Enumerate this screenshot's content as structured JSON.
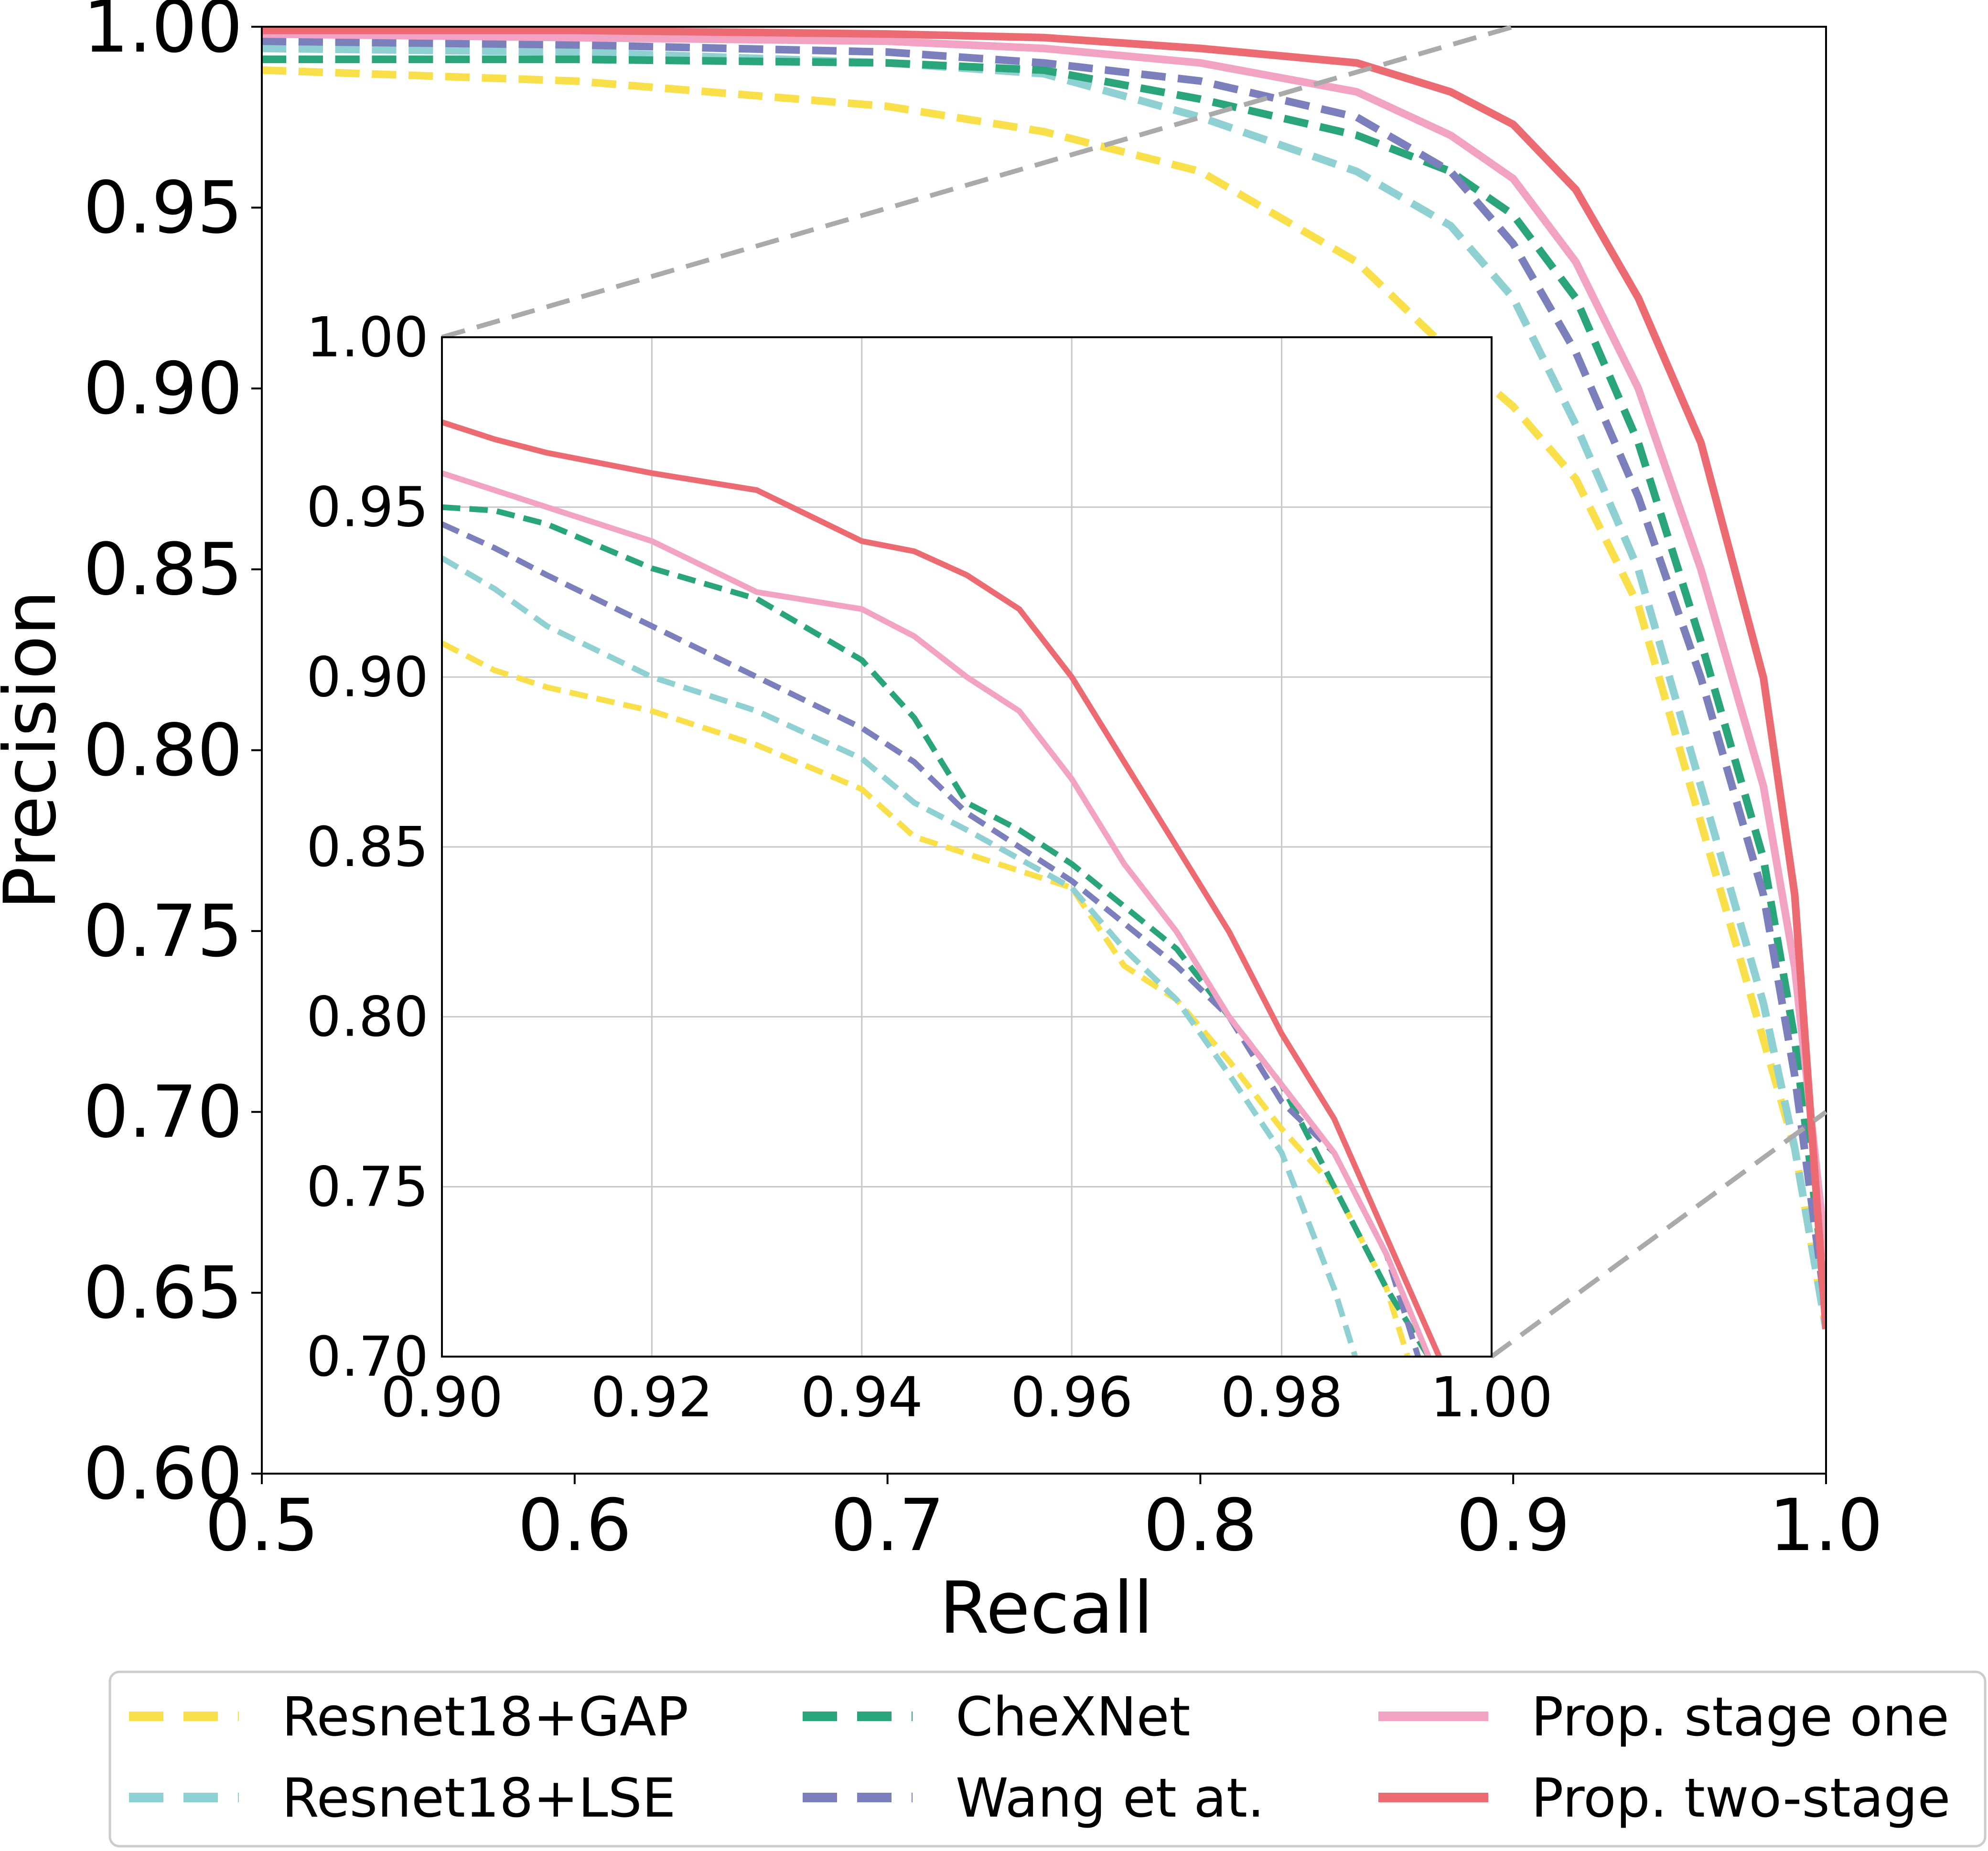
{
  "chart_data": [
    {
      "type": "line",
      "xlabel": "Recall",
      "ylabel": "Precision",
      "xlim": [
        0.5,
        1.0
      ],
      "ylim": [
        0.6,
        1.0
      ],
      "x_ticks": [
        "0.5",
        "0.6",
        "0.7",
        "0.8",
        "0.9",
        "1.0"
      ],
      "y_ticks": [
        "0.60",
        "0.65",
        "0.70",
        "0.75",
        "0.80",
        "0.85",
        "0.90",
        "0.95",
        "1.00"
      ],
      "grid": false,
      "legend": "below plot, 3 columns",
      "series": [
        {
          "name": "Resnet18+GAP",
          "color": "#f9e04b",
          "style": "dashed",
          "x": [
            0.5,
            0.6,
            0.7,
            0.75,
            0.8,
            0.85,
            0.88,
            0.9,
            0.92,
            0.94,
            0.96,
            0.98,
            0.99,
            1.0
          ],
          "y": [
            0.988,
            0.985,
            0.978,
            0.971,
            0.96,
            0.935,
            0.91,
            0.895,
            0.875,
            0.84,
            0.78,
            0.72,
            0.69,
            0.64
          ]
        },
        {
          "name": "Resnet18+LSE",
          "color": "#8fd1d3",
          "style": "dashed",
          "x": [
            0.5,
            0.6,
            0.7,
            0.75,
            0.8,
            0.85,
            0.88,
            0.9,
            0.92,
            0.94,
            0.96,
            0.98,
            0.99,
            1.0
          ],
          "y": [
            0.994,
            0.993,
            0.99,
            0.987,
            0.975,
            0.96,
            0.945,
            0.925,
            0.89,
            0.85,
            0.79,
            0.73,
            0.69,
            0.64
          ]
        },
        {
          "name": "CheXNet",
          "color": "#2aa57a",
          "style": "dashed",
          "x": [
            0.5,
            0.6,
            0.7,
            0.75,
            0.8,
            0.85,
            0.88,
            0.9,
            0.92,
            0.94,
            0.96,
            0.98,
            0.99,
            1.0
          ],
          "y": [
            0.991,
            0.991,
            0.99,
            0.988,
            0.98,
            0.97,
            0.96,
            0.948,
            0.925,
            0.885,
            0.83,
            0.77,
            0.72,
            0.65
          ]
        },
        {
          "name": "Wang et at.",
          "color": "#7b7fbb",
          "style": "dashed",
          "x": [
            0.5,
            0.6,
            0.7,
            0.75,
            0.8,
            0.85,
            0.88,
            0.9,
            0.92,
            0.94,
            0.96,
            0.98,
            0.99,
            1.0
          ],
          "y": [
            0.996,
            0.995,
            0.993,
            0.99,
            0.985,
            0.975,
            0.96,
            0.94,
            0.91,
            0.87,
            0.82,
            0.76,
            0.71,
            0.645
          ]
        },
        {
          "name": "Prop. stage one",
          "color": "#f2a3c4",
          "style": "solid",
          "x": [
            0.5,
            0.6,
            0.7,
            0.75,
            0.8,
            0.85,
            0.88,
            0.9,
            0.92,
            0.94,
            0.96,
            0.98,
            0.99,
            1.0
          ],
          "y": [
            0.998,
            0.997,
            0.996,
            0.994,
            0.99,
            0.982,
            0.97,
            0.958,
            0.935,
            0.9,
            0.85,
            0.79,
            0.74,
            0.66
          ]
        },
        {
          "name": "Prop. two-stage",
          "color": "#ec6b72",
          "style": "solid",
          "x": [
            0.5,
            0.6,
            0.7,
            0.75,
            0.8,
            0.85,
            0.88,
            0.9,
            0.92,
            0.94,
            0.96,
            0.98,
            0.99,
            1.0
          ],
          "y": [
            0.999,
            0.999,
            0.998,
            0.997,
            0.994,
            0.99,
            0.982,
            0.973,
            0.955,
            0.925,
            0.885,
            0.82,
            0.76,
            0.64
          ]
        }
      ]
    },
    {
      "type": "line",
      "xlim": [
        0.9,
        1.0
      ],
      "ylim": [
        0.7,
        1.0
      ],
      "x_ticks": [
        "0.90",
        "0.92",
        "0.94",
        "0.96",
        "0.98",
        "1.00"
      ],
      "y_ticks": [
        "0.70",
        "0.75",
        "0.80",
        "0.85",
        "0.90",
        "0.95",
        "1.00"
      ],
      "grid": true,
      "series": [
        {
          "name": "Resnet18+GAP",
          "color": "#f9e04b",
          "style": "dashed",
          "x": [
            0.9,
            0.905,
            0.91,
            0.92,
            0.93,
            0.94,
            0.945,
            0.95,
            0.96,
            0.965,
            0.97,
            0.975,
            0.98,
            0.985,
            0.99,
            0.992
          ],
          "y": [
            0.91,
            0.902,
            0.897,
            0.89,
            0.88,
            0.867,
            0.853,
            0.848,
            0.838,
            0.815,
            0.805,
            0.787,
            0.767,
            0.75,
            0.72,
            0.7
          ]
        },
        {
          "name": "Resnet18+LSE",
          "color": "#8fd1d3",
          "style": "dashed",
          "x": [
            0.9,
            0.905,
            0.91,
            0.92,
            0.93,
            0.94,
            0.945,
            0.95,
            0.96,
            0.965,
            0.97,
            0.975,
            0.98,
            0.985,
            0.987
          ],
          "y": [
            0.935,
            0.926,
            0.915,
            0.9,
            0.89,
            0.876,
            0.863,
            0.855,
            0.838,
            0.82,
            0.805,
            0.783,
            0.76,
            0.72,
            0.7
          ]
        },
        {
          "name": "CheXNet",
          "color": "#2aa57a",
          "style": "dashed",
          "x": [
            0.9,
            0.905,
            0.91,
            0.92,
            0.93,
            0.94,
            0.945,
            0.95,
            0.955,
            0.96,
            0.97,
            0.975,
            0.98,
            0.985,
            0.99,
            0.994
          ],
          "y": [
            0.95,
            0.949,
            0.945,
            0.932,
            0.923,
            0.905,
            0.888,
            0.863,
            0.855,
            0.845,
            0.82,
            0.8,
            0.78,
            0.75,
            0.72,
            0.7
          ]
        },
        {
          "name": "Wang et at.",
          "color": "#7b7fbb",
          "style": "dashed",
          "x": [
            0.9,
            0.905,
            0.91,
            0.92,
            0.93,
            0.94,
            0.945,
            0.95,
            0.96,
            0.97,
            0.975,
            0.98,
            0.985,
            0.99,
            0.993
          ],
          "y": [
            0.945,
            0.938,
            0.93,
            0.915,
            0.9,
            0.885,
            0.875,
            0.86,
            0.84,
            0.815,
            0.8,
            0.775,
            0.76,
            0.73,
            0.7
          ]
        },
        {
          "name": "Prop. stage one",
          "color": "#f2a3c4",
          "style": "solid",
          "x": [
            0.9,
            0.905,
            0.91,
            0.92,
            0.93,
            0.94,
            0.945,
            0.95,
            0.955,
            0.96,
            0.965,
            0.97,
            0.975,
            0.98,
            0.985,
            0.99,
            0.994
          ],
          "y": [
            0.96,
            0.955,
            0.95,
            0.94,
            0.925,
            0.92,
            0.912,
            0.9,
            0.89,
            0.87,
            0.845,
            0.825,
            0.8,
            0.78,
            0.76,
            0.73,
            0.7
          ]
        },
        {
          "name": "Prop. two-stage",
          "color": "#ec6b72",
          "style": "solid",
          "x": [
            0.9,
            0.905,
            0.91,
            0.92,
            0.93,
            0.94,
            0.945,
            0.95,
            0.955,
            0.96,
            0.965,
            0.97,
            0.975,
            0.98,
            0.985,
            0.99,
            0.995
          ],
          "y": [
            0.975,
            0.97,
            0.966,
            0.96,
            0.955,
            0.94,
            0.937,
            0.93,
            0.92,
            0.9,
            0.875,
            0.85,
            0.825,
            0.795,
            0.77,
            0.735,
            0.7
          ]
        }
      ]
    }
  ]
}
